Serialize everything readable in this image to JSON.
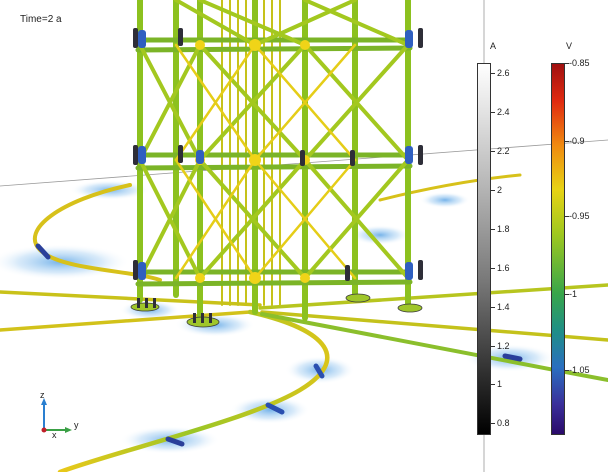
{
  "time_label": "Time=2 a",
  "legend_a": {
    "title": "A",
    "ticks": [
      "2.6",
      "2.4",
      "2.2",
      "2",
      "1.8",
      "1.6",
      "1.4",
      "1.2",
      "1",
      "0.8"
    ]
  },
  "legend_v": {
    "title": "V",
    "ticks": [
      "-0.85",
      "-0.9",
      "-0.95",
      "-1",
      "-1.05"
    ]
  },
  "axes": {
    "z": "z",
    "x": "x",
    "y": "y"
  }
}
